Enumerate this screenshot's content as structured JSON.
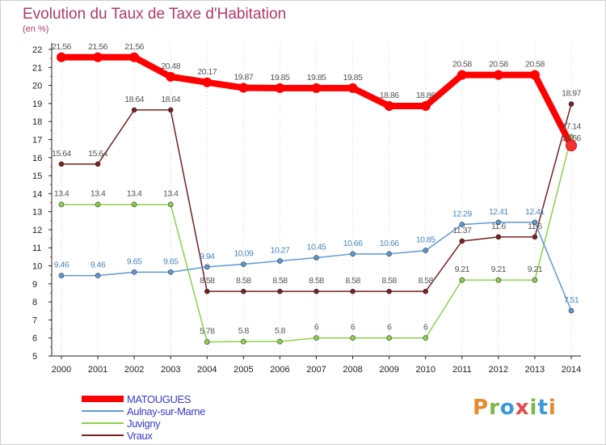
{
  "title": "Evolution du Taux de Taxe d'Habitation",
  "subtitle": "(en %)",
  "logo": [
    "P",
    "r",
    "o",
    "x",
    "i",
    "t",
    "i"
  ],
  "chart_data": {
    "type": "line",
    "x": [
      "2000",
      "2001",
      "2002",
      "2003",
      "2004",
      "2005",
      "2006",
      "2007",
      "2008",
      "2009",
      "2010",
      "2011",
      "2012",
      "2013",
      "2014"
    ],
    "ylim": [
      5,
      22
    ],
    "yticks": [
      5,
      6,
      7,
      8,
      9,
      10,
      11,
      12,
      13,
      14,
      15,
      16,
      17,
      18,
      19,
      20,
      21,
      22
    ],
    "grid": "vertical-dotted",
    "legend_placement": "bottom-left",
    "series": [
      {
        "name": "MATOUGUES",
        "color": "#ff0000",
        "labelColor": "#555555",
        "values": [
          21.56,
          21.56,
          21.56,
          20.48,
          20.17,
          19.87,
          19.85,
          19.85,
          19.85,
          18.86,
          18.86,
          20.58,
          20.58,
          20.58,
          16.66
        ],
        "labels": [
          "21.56",
          "21.56",
          "21.56",
          "20.48",
          "20.17",
          "19.87",
          "19.85",
          "19.85",
          "19.85",
          "18.86",
          "18.86",
          "20.58",
          "20.58",
          "20.58",
          ""
        ]
      },
      {
        "name": "Aulnay-sur-Marne",
        "color": "#5b9bd5",
        "labelColor": "#4a86c0",
        "values": [
          9.46,
          9.46,
          9.65,
          9.65,
          9.94,
          10.09,
          10.27,
          10.45,
          10.66,
          10.66,
          10.85,
          12.29,
          12.41,
          12.41,
          7.51
        ],
        "labels": [
          "9.46",
          "9.46",
          "9.65",
          "9.65",
          "9.94",
          "10.09",
          "10.27",
          "10.45",
          "10.66",
          "10.66",
          "10.85",
          "12.29",
          "12.41",
          "12.41",
          "7.51"
        ]
      },
      {
        "name": "Juvigny",
        "color": "#8ed14a",
        "labelColor": "#555555",
        "values": [
          13.4,
          13.4,
          13.4,
          13.4,
          5.78,
          5.8,
          5.8,
          6,
          6,
          6,
          6,
          9.21,
          9.21,
          9.21,
          17.14
        ],
        "labels": [
          "13.4",
          "13.4",
          "13.4",
          "13.4",
          "5.78",
          "5.8",
          "5.8",
          "6",
          "6",
          "6",
          "6",
          "9.21",
          "9.21",
          "9.21",
          "17.14"
        ]
      },
      {
        "name": "Vraux",
        "color": "#7a2020",
        "labelColor": "#555555",
        "values": [
          15.64,
          15.64,
          18.64,
          18.64,
          8.58,
          8.58,
          8.58,
          8.58,
          8.58,
          8.58,
          8.58,
          11.37,
          11.6,
          11.6,
          18.97
        ],
        "labels": [
          "15.64",
          "15.64",
          "18.64",
          "18.64",
          "8.58",
          "8.58",
          "8.58",
          "8.58",
          "8.58",
          "8.58",
          "8.58",
          "11.37",
          "11.6",
          "11.6",
          "18.97"
        ]
      }
    ],
    "extra_labels": [
      "16.66"
    ]
  }
}
